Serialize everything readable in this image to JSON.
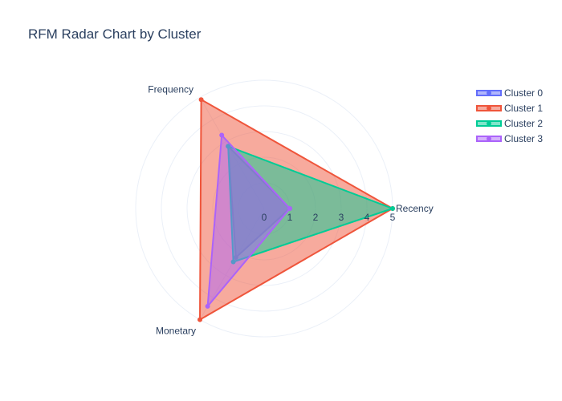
{
  "chart_data": {
    "type": "radar",
    "title": "RFM Radar Chart by Cluster",
    "axes": [
      "Recency",
      "Frequency",
      "Monetary"
    ],
    "radial_range": [
      0,
      5
    ],
    "radial_ticks": [
      "0",
      "1",
      "2",
      "3",
      "4",
      "5"
    ],
    "grid": true,
    "legend_position": "top-right",
    "series": [
      {
        "name": "Cluster 0",
        "color": "#636efa",
        "values": [
          1,
          2.8,
          2.2
        ]
      },
      {
        "name": "Cluster 1",
        "color": "#ef553b",
        "values": [
          5,
          4.9,
          5
        ]
      },
      {
        "name": "Cluster 2",
        "color": "#00cc96",
        "values": [
          5,
          2.8,
          2.4
        ]
      },
      {
        "name": "Cluster 3",
        "color": "#ab63fa",
        "values": [
          1,
          3.3,
          4.4
        ]
      }
    ]
  }
}
